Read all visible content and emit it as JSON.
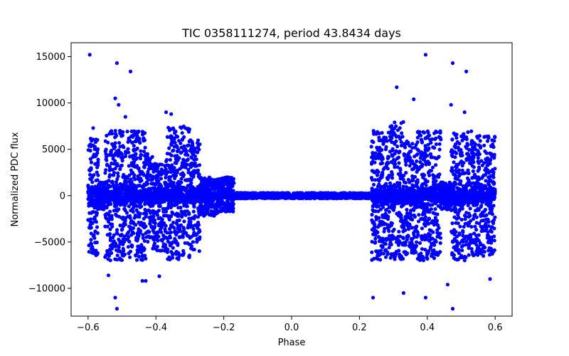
{
  "chart_data": {
    "type": "scatter",
    "title": "TIC 0358111274, period 43.8434 days",
    "xlabel": "Phase",
    "ylabel": "Normalized PDC flux",
    "xlim": [
      -0.65,
      0.65
    ],
    "ylim": [
      -13000,
      16500
    ],
    "x_ticks": [
      -0.6,
      -0.4,
      -0.2,
      0.0,
      0.2,
      0.4,
      0.6
    ],
    "x_tick_labels": [
      "−0.6",
      "−0.4",
      "−0.2",
      "0.0",
      "0.2",
      "0.4",
      "0.6"
    ],
    "y_ticks": [
      -10000,
      -5000,
      0,
      5000,
      10000,
      15000
    ],
    "y_tick_labels": [
      "−10000",
      "−5000",
      "0",
      "5000",
      "10000",
      "15000"
    ],
    "grid": false,
    "marker_color": "#0000ff",
    "bands": [
      {
        "x": [
          -0.6,
          -0.57
        ],
        "y": [
          -6500,
          6500
        ]
      },
      {
        "x": [
          -0.57,
          -0.55
        ],
        "y": [
          -1500,
          1500
        ]
      },
      {
        "x": [
          -0.55,
          -0.43
        ],
        "y": [
          -7000,
          7000
        ]
      },
      {
        "x": [
          -0.43,
          -0.41
        ],
        "y": [
          -5000,
          4500
        ]
      },
      {
        "x": [
          -0.41,
          -0.37
        ],
        "y": [
          -6000,
          3500
        ]
      },
      {
        "x": [
          -0.37,
          -0.3
        ],
        "y": [
          -7000,
          7500
        ]
      },
      {
        "x": [
          -0.3,
          -0.27
        ],
        "y": [
          -6000,
          6000
        ]
      },
      {
        "x": [
          -0.27,
          -0.22
        ],
        "y": [
          -2200,
          2000
        ]
      },
      {
        "x": [
          -0.22,
          -0.17
        ],
        "y": [
          -1800,
          2000
        ]
      },
      {
        "x": [
          -0.17,
          0.23
        ],
        "y": [
          -300,
          300
        ]
      },
      {
        "x": [
          0.235,
          0.29
        ],
        "y": [
          -7000,
          7000
        ]
      },
      {
        "x": [
          0.29,
          0.33
        ],
        "y": [
          -7000,
          8000
        ]
      },
      {
        "x": [
          0.33,
          0.37
        ],
        "y": [
          -6500,
          6000
        ]
      },
      {
        "x": [
          0.37,
          0.44
        ],
        "y": [
          -7000,
          7000
        ]
      },
      {
        "x": [
          0.44,
          0.47
        ],
        "y": [
          -1500,
          1500
        ]
      },
      {
        "x": [
          0.47,
          0.53
        ],
        "y": [
          -7000,
          7000
        ]
      },
      {
        "x": [
          0.53,
          0.6
        ],
        "y": [
          -6500,
          6500
        ]
      }
    ],
    "outliers": [
      {
        "x": -0.595,
        "y": 15200
      },
      {
        "x": -0.515,
        "y": 14300
      },
      {
        "x": -0.475,
        "y": 13400
      },
      {
        "x": -0.52,
        "y": 10500
      },
      {
        "x": -0.51,
        "y": 9800
      },
      {
        "x": -0.49,
        "y": 8500
      },
      {
        "x": -0.37,
        "y": 9000
      },
      {
        "x": -0.355,
        "y": 8800
      },
      {
        "x": -0.585,
        "y": 7300
      },
      {
        "x": -0.54,
        "y": -8600
      },
      {
        "x": -0.52,
        "y": -11000
      },
      {
        "x": -0.515,
        "y": -12200
      },
      {
        "x": -0.44,
        "y": -9200
      },
      {
        "x": -0.43,
        "y": -9200
      },
      {
        "x": -0.39,
        "y": -8700
      },
      {
        "x": 0.395,
        "y": 15200
      },
      {
        "x": 0.475,
        "y": 14300
      },
      {
        "x": 0.515,
        "y": 13400
      },
      {
        "x": 0.31,
        "y": 11700
      },
      {
        "x": 0.36,
        "y": 10400
      },
      {
        "x": 0.47,
        "y": 9800
      },
      {
        "x": 0.51,
        "y": 9000
      },
      {
        "x": 0.24,
        "y": -11000
      },
      {
        "x": 0.33,
        "y": -10500
      },
      {
        "x": 0.395,
        "y": -11000
      },
      {
        "x": 0.475,
        "y": -12200
      },
      {
        "x": 0.46,
        "y": -9600
      },
      {
        "x": 0.585,
        "y": -9000
      }
    ]
  }
}
